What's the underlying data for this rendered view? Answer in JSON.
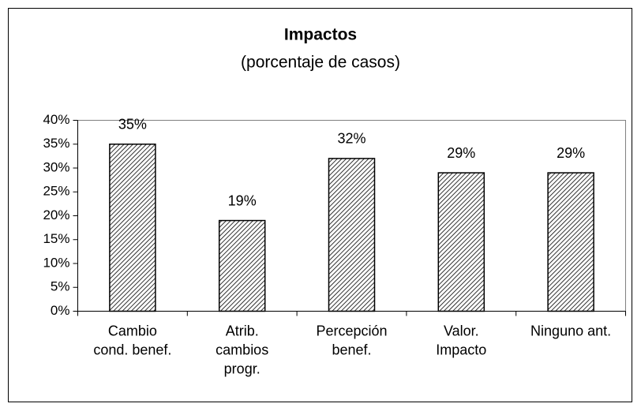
{
  "chart_data": {
    "type": "bar",
    "title": "Impactos",
    "subtitle": "(porcentaje de casos)",
    "categories": [
      [
        "Cambio",
        "cond. benef."
      ],
      [
        "Atrib.",
        "cambios",
        "progr."
      ],
      [
        "Percepción",
        "benef."
      ],
      [
        "Valor.",
        "Impacto"
      ],
      [
        "Ninguno ant."
      ]
    ],
    "values": [
      35,
      19,
      32,
      29,
      29
    ],
    "value_labels": [
      "35%",
      "19%",
      "32%",
      "29%",
      "29%"
    ],
    "color": "#000000",
    "ylim": [
      0,
      40
    ],
    "yticks": [
      {
        "value": 0,
        "label": "0%"
      },
      {
        "value": 5,
        "label": "5%"
      },
      {
        "value": 10,
        "label": "10%"
      },
      {
        "value": 15,
        "label": "15%"
      },
      {
        "value": 20,
        "label": "20%"
      },
      {
        "value": 25,
        "label": "25%"
      },
      {
        "value": 30,
        "label": "30%"
      },
      {
        "value": 35,
        "label": "35%"
      },
      {
        "value": 40,
        "label": "40%"
      }
    ],
    "grid": false
  }
}
